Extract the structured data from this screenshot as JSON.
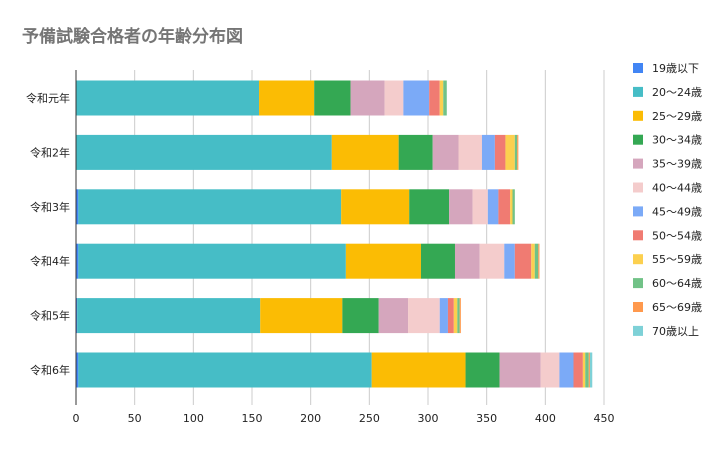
{
  "chart_data": {
    "type": "bar",
    "orientation": "horizontal",
    "stacked": true,
    "title": "予備試験合格者の年齢分布図",
    "xlabel": "",
    "ylabel": "",
    "xlim": [
      0,
      450
    ],
    "xticks": [
      0,
      50,
      100,
      150,
      200,
      250,
      300,
      350,
      400,
      450
    ],
    "grid": true,
    "legend_position": "right",
    "categories": [
      "令和元年",
      "令和2年",
      "令和3年",
      "令和4年",
      "令和5年",
      "令和6年"
    ],
    "series": [
      {
        "name": "19歳以下",
        "color": "#4285f4",
        "values": [
          0,
          0,
          2,
          2,
          1,
          2
        ]
      },
      {
        "name": "20～24歳",
        "color": "#46bdc6",
        "values": [
          156,
          218,
          224,
          228,
          156,
          250
        ]
      },
      {
        "name": "25～29歳",
        "color": "#fbbc04",
        "values": [
          47,
          57,
          58,
          64,
          70,
          80
        ]
      },
      {
        "name": "30～34歳",
        "color": "#34a853",
        "values": [
          31,
          29,
          34,
          29,
          31,
          29
        ]
      },
      {
        "name": "35～39歳",
        "color": "#d5a6bd",
        "values": [
          29,
          22,
          20,
          21,
          25,
          35
        ]
      },
      {
        "name": "40～44歳",
        "color": "#f4cccc",
        "values": [
          16,
          20,
          13,
          21,
          27,
          16
        ]
      },
      {
        "name": "45～49歳",
        "color": "#7baaf7",
        "values": [
          22,
          11,
          9,
          9,
          7,
          12
        ]
      },
      {
        "name": "50～54歳",
        "color": "#f07b72",
        "values": [
          9,
          9,
          10,
          14,
          5,
          8
        ]
      },
      {
        "name": "55～59歳",
        "color": "#fcd04f",
        "values": [
          3,
          8,
          2,
          3,
          3,
          2
        ]
      },
      {
        "name": "60～64歳",
        "color": "#71c287",
        "values": [
          3,
          2,
          2,
          3,
          2,
          3
        ]
      },
      {
        "name": "65～69歳",
        "color": "#ff994d",
        "values": [
          0,
          1,
          0,
          1,
          1,
          1
        ]
      },
      {
        "name": "70歳以上",
        "color": "#7ed1d7",
        "values": [
          0,
          0,
          0,
          0,
          0,
          2
        ]
      }
    ]
  }
}
